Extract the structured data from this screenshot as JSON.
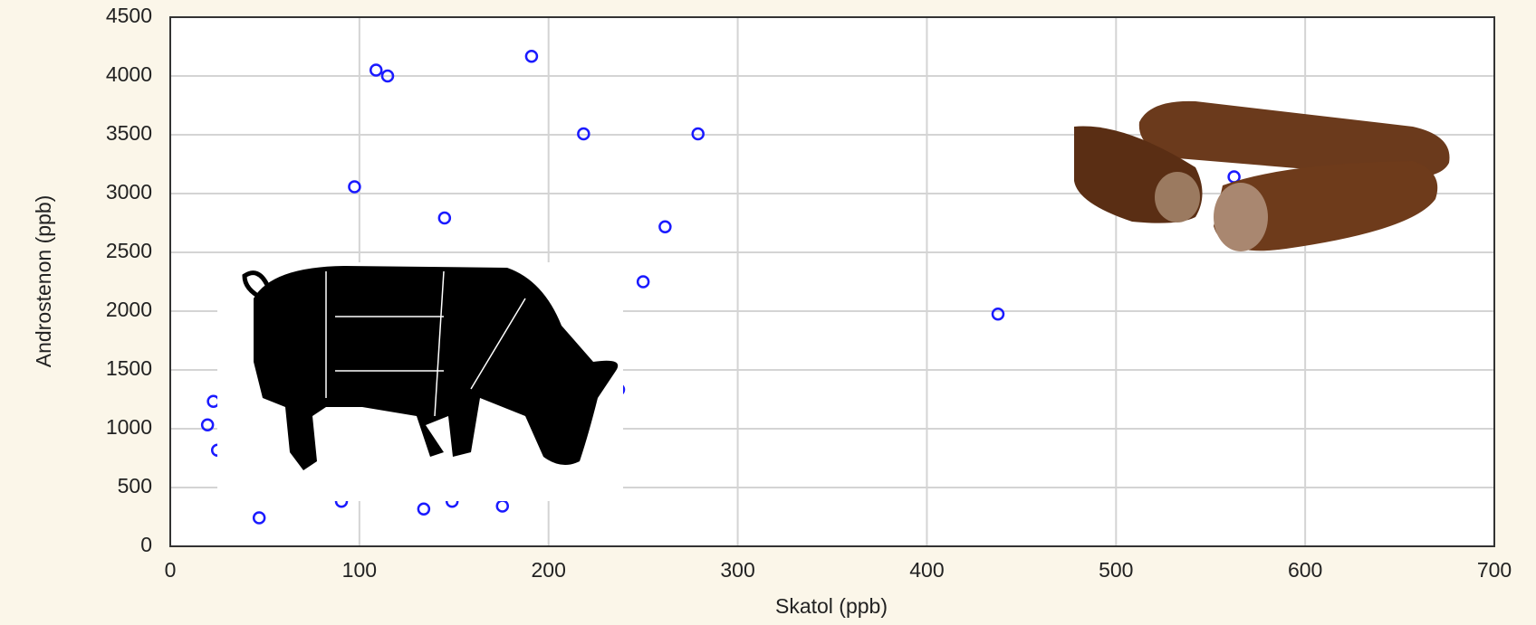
{
  "chart_data": {
    "type": "scatter",
    "x_label": "Skatol (ppb)",
    "y_label": "Androstenon (ppb)",
    "x": [
      108.8,
      114.9,
      191,
      218.5,
      279,
      97.4,
      145,
      261.6,
      250,
      437.6,
      562.4,
      19.7,
      22.8,
      237,
      25,
      47,
      90.5,
      134,
      149,
      175.6
    ],
    "values": [
      4050,
      4000,
      4167,
      3508,
      3508,
      3058,
      2792,
      2717,
      2250,
      1975,
      3142,
      1033,
      1233,
      1333,
      817,
      242,
      383,
      317,
      383,
      342
    ],
    "color": "#1a1aff",
    "xlim": [
      0,
      700
    ],
    "xticks": [
      0,
      100,
      200,
      300,
      400,
      500,
      600,
      700
    ],
    "ylim": [
      0,
      4500
    ],
    "yticks": [
      0,
      500,
      1000,
      1500,
      2000,
      2500,
      3000,
      3500,
      4000,
      4500
    ],
    "grid": true
  }
}
